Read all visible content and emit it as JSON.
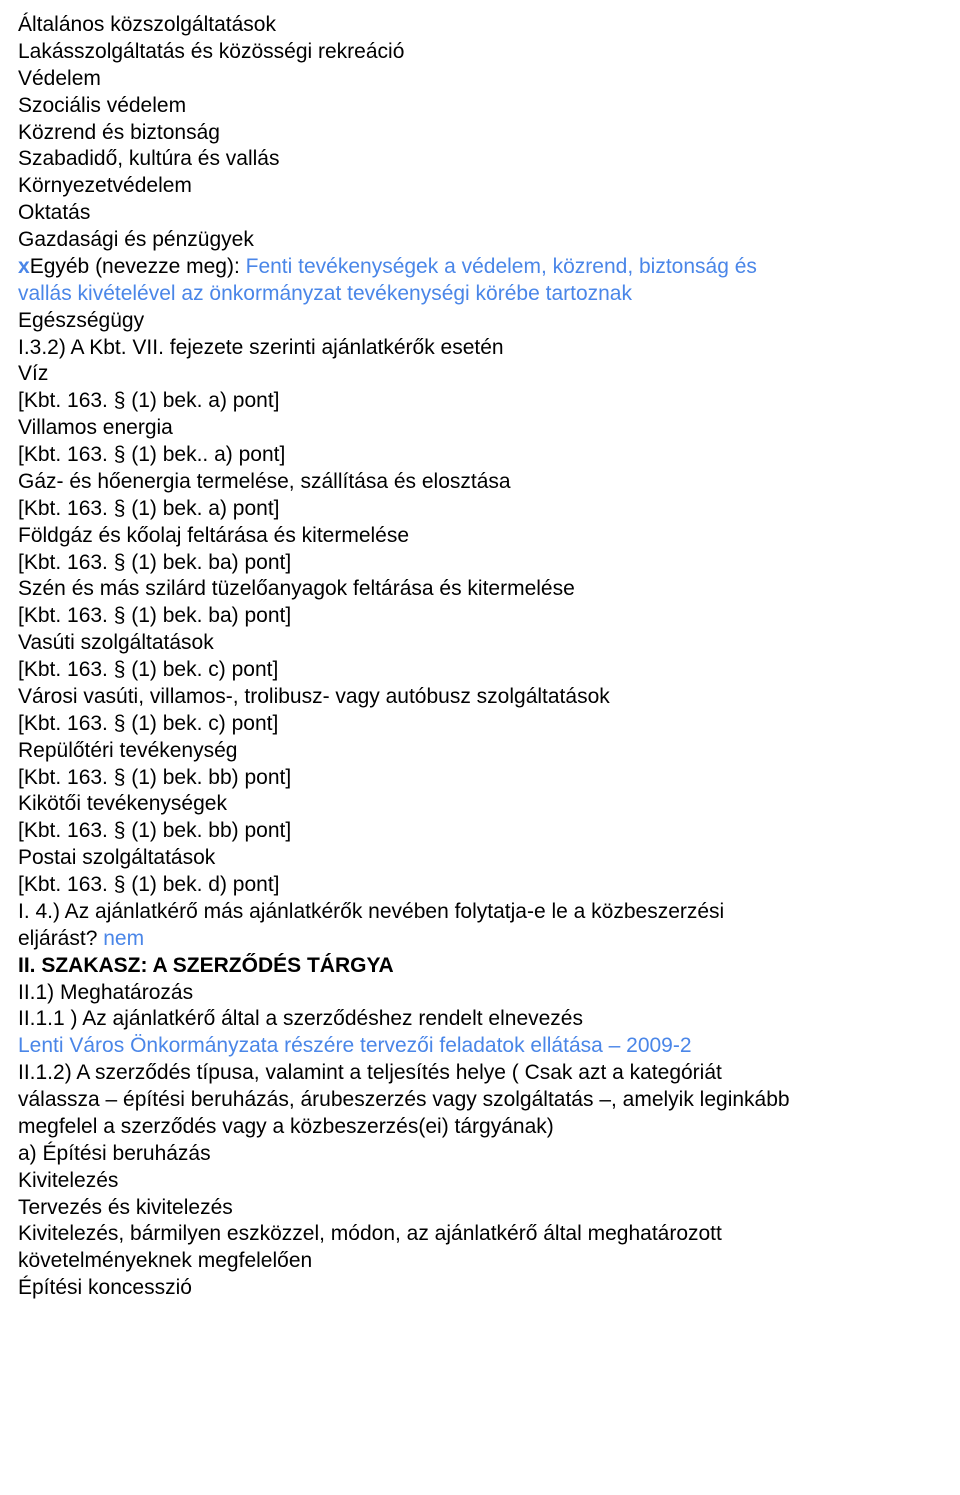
{
  "text_color": "#000000",
  "blue_color": "#4a86e8",
  "background_color": "#ffffff",
  "font_size": 21,
  "lines": {
    "l1": "Általános közszolgáltatások",
    "l2": "Lakásszolgáltatás és közösségi rekreáció",
    "l3": "Védelem",
    "l4": "Szociális védelem",
    "l5": "Közrend és biztonság",
    "l6": "Szabadidő, kultúra és vallás",
    "l7": "Környezetvédelem",
    "l8": "Oktatás",
    "l9": "Gazdasági és pénzügyek",
    "l10_x": "x",
    "l10_rest": "Egyéb (nevezze meg): ",
    "l10_blue": "Fenti tevékenységek a védelem, közrend, biztonság és",
    "l11_blue": "vallás kivételével az önkormányzat tevékenységi körébe tartoznak",
    "l12": "Egészségügy",
    "l13": "I.3.2) A Kbt. VII. fejezete szerinti ajánlatkérők esetén",
    "l14": "Víz",
    "l15": "[Kbt. 163. § (1) bek. a) pont]",
    "l16": "Villamos energia",
    "l17": "[Kbt. 163. § (1) bek.. a) pont]",
    "l18": "Gáz- és hőenergia termelése, szállítása és elosztása",
    "l19": "[Kbt. 163. § (1) bek. a) pont]",
    "l20": "Földgáz és kőolaj feltárása és kitermelése",
    "l21": "[Kbt. 163. § (1) bek. ba) pont]",
    "l22": "Szén és más szilárd tüzelőanyagok feltárása és kitermelése",
    "l23": "[Kbt. 163. § (1) bek. ba) pont]",
    "l24": "Vasúti szolgáltatások",
    "l25": "[Kbt. 163. § (1) bek. c) pont]",
    "l26": "Városi vasúti, villamos-, trolibusz- vagy autóbusz szolgáltatások",
    "l27": "[Kbt. 163. § (1) bek. c) pont]",
    "l28": "Repülőtéri tevékenység",
    "l29": "[Kbt. 163. § (1) bek. bb) pont]",
    "l30": "Kikötői tevékenységek",
    "l31": "[Kbt. 163. § (1) bek. bb) pont]",
    "l32": "Postai szolgáltatások",
    "l33": "[Kbt. 163. § (1) bek. d) pont]",
    "l34": "I. 4.) Az ajánlatkérő más ajánlatkérők nevében folytatja-e le a közbeszerzési",
    "l35_black": "eljárást? ",
    "l35_blue": "nem",
    "l36": "II. SZAKASZ: A SZERZŐDÉS TÁRGYA",
    "l37": "II.1) Meghatározás",
    "l38": "II.1.1 ) Az ajánlatkérő által a szerződéshez rendelt elnevezés",
    "l39": "Lenti Város Önkormányzata részére tervezői feladatok ellátása – 2009-2",
    "l40": "II.1.2) A szerződés típusa, valamint a teljesítés helye ( Csak azt a kategóriát",
    "l41": "válassza – építési beruházás, árubeszerzés vagy szolgáltatás –, amelyik leginkább",
    "l42": "megfelel a szerződés vagy a közbeszerzés(ei) tárgyának)",
    "l43": "a) Építési beruházás",
    "l44": "Kivitelezés",
    "l45": "Tervezés és kivitelezés",
    "l46": "Kivitelezés, bármilyen eszközzel, módon, az ajánlatkérő által meghatározott",
    "l47": "követelményeknek megfelelően",
    "l48": "Építési koncesszió"
  }
}
